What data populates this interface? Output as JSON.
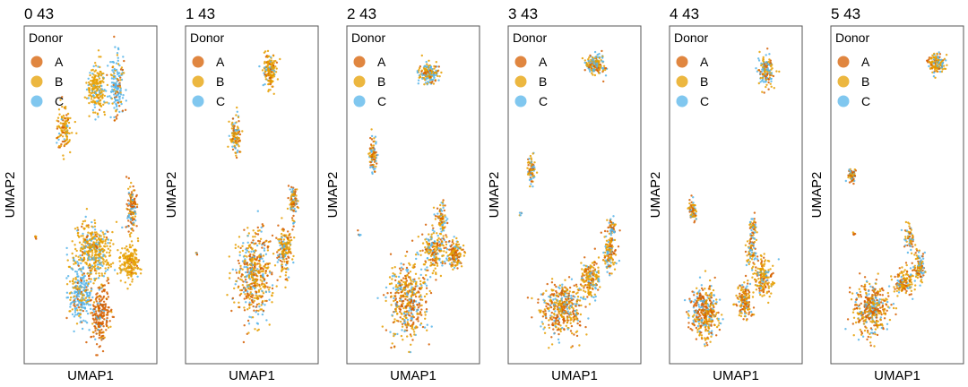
{
  "figure": {
    "xlabel": "UMAP1",
    "ylabel": "UMAP2"
  },
  "legend": {
    "title": "Donor",
    "entries": [
      {
        "label": "A",
        "color": "#D55E00"
      },
      {
        "label": "B",
        "color": "#E69F00"
      },
      {
        "label": "C",
        "color": "#56B4E9"
      }
    ],
    "placement": "top-left"
  },
  "chart_data": [
    {
      "type": "scatter",
      "title": "0 43",
      "xlabel": "UMAP1",
      "ylabel": "UMAP2",
      "xlim": [
        0,
        1
      ],
      "ylim": [
        0,
        1
      ],
      "grid": false,
      "clusters": [
        {
          "x": 0.55,
          "y": 0.83,
          "sx": 0.07,
          "sy": 0.07,
          "n": 200,
          "mix": [
            0.05,
            0.75,
            0.2
          ]
        },
        {
          "x": 0.72,
          "y": 0.83,
          "sx": 0.05,
          "sy": 0.08,
          "n": 160,
          "mix": [
            0.15,
            0.15,
            0.7
          ]
        },
        {
          "x": 0.28,
          "y": 0.7,
          "sx": 0.06,
          "sy": 0.06,
          "n": 120,
          "mix": [
            0.2,
            0.7,
            0.1
          ]
        },
        {
          "x": 0.52,
          "y": 0.33,
          "sx": 0.14,
          "sy": 0.08,
          "n": 400,
          "mix": [
            0.1,
            0.65,
            0.25
          ]
        },
        {
          "x": 0.42,
          "y": 0.2,
          "sx": 0.09,
          "sy": 0.08,
          "n": 260,
          "mix": [
            0.1,
            0.2,
            0.7
          ]
        },
        {
          "x": 0.58,
          "y": 0.13,
          "sx": 0.07,
          "sy": 0.08,
          "n": 220,
          "mix": [
            0.75,
            0.15,
            0.1
          ]
        },
        {
          "x": 0.82,
          "y": 0.29,
          "sx": 0.07,
          "sy": 0.05,
          "n": 180,
          "mix": [
            0.05,
            0.9,
            0.05
          ]
        },
        {
          "x": 0.84,
          "y": 0.46,
          "sx": 0.04,
          "sy": 0.06,
          "n": 140,
          "mix": [
            0.55,
            0.2,
            0.25
          ]
        },
        {
          "x": 0.05,
          "y": 0.37,
          "sx": 0.01,
          "sy": 0.01,
          "n": 6,
          "mix": [
            0.3,
            0.3,
            0.4
          ]
        }
      ]
    },
    {
      "type": "scatter",
      "title": "1 43",
      "xlabel": "UMAP1",
      "ylabel": "UMAP2",
      "xlim": [
        0,
        1
      ],
      "ylim": [
        0,
        1
      ],
      "grid": false,
      "clusters": [
        {
          "x": 0.65,
          "y": 0.88,
          "sx": 0.05,
          "sy": 0.05,
          "n": 160,
          "mix": [
            0.15,
            0.65,
            0.2
          ]
        },
        {
          "x": 0.36,
          "y": 0.68,
          "sx": 0.04,
          "sy": 0.05,
          "n": 110,
          "mix": [
            0.25,
            0.55,
            0.2
          ]
        },
        {
          "x": 0.52,
          "y": 0.25,
          "sx": 0.13,
          "sy": 0.12,
          "n": 480,
          "mix": [
            0.3,
            0.5,
            0.2
          ]
        },
        {
          "x": 0.77,
          "y": 0.33,
          "sx": 0.05,
          "sy": 0.06,
          "n": 170,
          "mix": [
            0.25,
            0.55,
            0.2
          ]
        },
        {
          "x": 0.84,
          "y": 0.48,
          "sx": 0.03,
          "sy": 0.05,
          "n": 100,
          "mix": [
            0.35,
            0.35,
            0.3
          ]
        },
        {
          "x": 0.05,
          "y": 0.32,
          "sx": 0.01,
          "sy": 0.01,
          "n": 5,
          "mix": [
            0.3,
            0.3,
            0.4
          ]
        }
      ]
    },
    {
      "type": "scatter",
      "title": "2 43",
      "xlabel": "UMAP1",
      "ylabel": "UMAP2",
      "xlim": [
        0,
        1
      ],
      "ylim": [
        0,
        1
      ],
      "grid": false,
      "clusters": [
        {
          "x": 0.63,
          "y": 0.87,
          "sx": 0.07,
          "sy": 0.03,
          "n": 170,
          "mix": [
            0.15,
            0.5,
            0.35
          ]
        },
        {
          "x": 0.17,
          "y": 0.62,
          "sx": 0.03,
          "sy": 0.05,
          "n": 90,
          "mix": [
            0.3,
            0.4,
            0.3
          ]
        },
        {
          "x": 0.45,
          "y": 0.18,
          "sx": 0.14,
          "sy": 0.1,
          "n": 430,
          "mix": [
            0.35,
            0.4,
            0.25
          ]
        },
        {
          "x": 0.68,
          "y": 0.33,
          "sx": 0.09,
          "sy": 0.06,
          "n": 200,
          "mix": [
            0.25,
            0.5,
            0.25
          ]
        },
        {
          "x": 0.84,
          "y": 0.32,
          "sx": 0.06,
          "sy": 0.04,
          "n": 150,
          "mix": [
            0.35,
            0.45,
            0.2
          ]
        },
        {
          "x": 0.73,
          "y": 0.43,
          "sx": 0.04,
          "sy": 0.04,
          "n": 80,
          "mix": [
            0.35,
            0.35,
            0.3
          ]
        },
        {
          "x": 0.06,
          "y": 0.38,
          "sx": 0.01,
          "sy": 0.01,
          "n": 5,
          "mix": [
            0.3,
            0.3,
            0.4
          ]
        }
      ]
    },
    {
      "type": "scatter",
      "title": "3 43",
      "xlabel": "UMAP1",
      "ylabel": "UMAP2",
      "xlim": [
        0,
        1
      ],
      "ylim": [
        0,
        1
      ],
      "grid": false,
      "clusters": [
        {
          "x": 0.67,
          "y": 0.9,
          "sx": 0.08,
          "sy": 0.03,
          "n": 170,
          "mix": [
            0.2,
            0.45,
            0.35
          ]
        },
        {
          "x": 0.15,
          "y": 0.58,
          "sx": 0.03,
          "sy": 0.04,
          "n": 80,
          "mix": [
            0.3,
            0.4,
            0.3
          ]
        },
        {
          "x": 0.4,
          "y": 0.15,
          "sx": 0.15,
          "sy": 0.07,
          "n": 420,
          "mix": [
            0.4,
            0.4,
            0.2
          ]
        },
        {
          "x": 0.63,
          "y": 0.24,
          "sx": 0.07,
          "sy": 0.05,
          "n": 180,
          "mix": [
            0.3,
            0.5,
            0.2
          ]
        },
        {
          "x": 0.79,
          "y": 0.32,
          "sx": 0.05,
          "sy": 0.05,
          "n": 120,
          "mix": [
            0.3,
            0.45,
            0.25
          ]
        },
        {
          "x": 0.81,
          "y": 0.4,
          "sx": 0.03,
          "sy": 0.03,
          "n": 50,
          "mix": [
            0.3,
            0.3,
            0.4
          ]
        },
        {
          "x": 0.06,
          "y": 0.44,
          "sx": 0.01,
          "sy": 0.01,
          "n": 5,
          "mix": [
            0.3,
            0.3,
            0.4
          ]
        }
      ]
    },
    {
      "type": "scatter",
      "title": "4 43",
      "xlabel": "UMAP1",
      "ylabel": "UMAP2",
      "xlim": [
        0,
        1
      ],
      "ylim": [
        0,
        1
      ],
      "grid": false,
      "clusters": [
        {
          "x": 0.75,
          "y": 0.88,
          "sx": 0.06,
          "sy": 0.04,
          "n": 140,
          "mix": [
            0.2,
            0.45,
            0.35
          ]
        },
        {
          "x": 0.15,
          "y": 0.45,
          "sx": 0.03,
          "sy": 0.03,
          "n": 70,
          "mix": [
            0.3,
            0.4,
            0.3
          ]
        },
        {
          "x": 0.24,
          "y": 0.14,
          "sx": 0.1,
          "sy": 0.07,
          "n": 360,
          "mix": [
            0.4,
            0.35,
            0.25
          ]
        },
        {
          "x": 0.57,
          "y": 0.18,
          "sx": 0.06,
          "sy": 0.05,
          "n": 150,
          "mix": [
            0.35,
            0.45,
            0.2
          ]
        },
        {
          "x": 0.73,
          "y": 0.25,
          "sx": 0.07,
          "sy": 0.05,
          "n": 170,
          "mix": [
            0.3,
            0.55,
            0.15
          ]
        },
        {
          "x": 0.63,
          "y": 0.32,
          "sx": 0.04,
          "sy": 0.04,
          "n": 70,
          "mix": [
            0.25,
            0.35,
            0.4
          ]
        },
        {
          "x": 0.64,
          "y": 0.4,
          "sx": 0.03,
          "sy": 0.03,
          "n": 50,
          "mix": [
            0.3,
            0.3,
            0.4
          ]
        }
      ]
    },
    {
      "type": "scatter",
      "title": "5 43",
      "xlabel": "UMAP1",
      "ylabel": "UMAP2",
      "xlim": [
        0,
        1
      ],
      "ylim": [
        0,
        1
      ],
      "grid": false,
      "clusters": [
        {
          "x": 0.82,
          "y": 0.9,
          "sx": 0.06,
          "sy": 0.03,
          "n": 140,
          "mix": [
            0.2,
            0.5,
            0.3
          ]
        },
        {
          "x": 0.13,
          "y": 0.56,
          "sx": 0.03,
          "sy": 0.02,
          "n": 60,
          "mix": [
            0.3,
            0.4,
            0.3
          ]
        },
        {
          "x": 0.29,
          "y": 0.15,
          "sx": 0.12,
          "sy": 0.07,
          "n": 380,
          "mix": [
            0.4,
            0.35,
            0.25
          ]
        },
        {
          "x": 0.55,
          "y": 0.23,
          "sx": 0.07,
          "sy": 0.04,
          "n": 150,
          "mix": [
            0.35,
            0.45,
            0.2
          ]
        },
        {
          "x": 0.68,
          "y": 0.28,
          "sx": 0.05,
          "sy": 0.04,
          "n": 110,
          "mix": [
            0.3,
            0.5,
            0.2
          ]
        },
        {
          "x": 0.6,
          "y": 0.37,
          "sx": 0.04,
          "sy": 0.03,
          "n": 60,
          "mix": [
            0.25,
            0.4,
            0.35
          ]
        },
        {
          "x": 0.14,
          "y": 0.38,
          "sx": 0.01,
          "sy": 0.01,
          "n": 5,
          "mix": [
            0.3,
            0.3,
            0.4
          ]
        }
      ]
    }
  ]
}
